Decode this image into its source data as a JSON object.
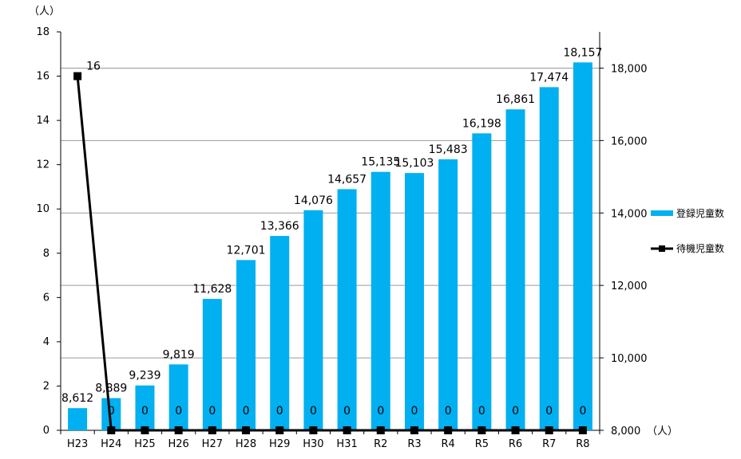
{
  "chart_data": {
    "type": "bar",
    "categories": [
      "H23",
      "H24",
      "H25",
      "H26",
      "H27",
      "H28",
      "H29",
      "H30",
      "H31",
      "R2",
      "R3",
      "R4",
      "R5",
      "R6",
      "R7",
      "R8"
    ],
    "series": [
      {
        "name": "登録児童数",
        "chart_type": "bar",
        "axis": "right",
        "color": "#00b0f0",
        "values": [
          8612,
          8889,
          9239,
          9819,
          11628,
          12701,
          13366,
          14076,
          14657,
          15135,
          15103,
          15483,
          16198,
          16861,
          17474,
          18157
        ],
        "labels": [
          "8,612",
          "8,889",
          "9,239",
          "9,819",
          "11,628",
          "12,701",
          "13,366",
          "14,076",
          "14,657",
          "15,135",
          "15,103",
          "15,483",
          "16,198",
          "16,861",
          "17,474",
          "18,157"
        ]
      },
      {
        "name": "待機児童数",
        "chart_type": "line",
        "axis": "left",
        "color": "#000000",
        "marker": "square",
        "values": [
          16,
          0,
          0,
          0,
          0,
          0,
          0,
          0,
          0,
          0,
          0,
          0,
          0,
          0,
          0,
          0
        ],
        "labels": [
          "16",
          "0",
          "0",
          "0",
          "0",
          "0",
          "0",
          "0",
          "0",
          "0",
          "0",
          "0",
          "0",
          "0",
          "0",
          "0"
        ]
      }
    ],
    "left_axis": {
      "unit": "（人）",
      "range": [
        0,
        18
      ],
      "ticks": [
        0,
        2,
        4,
        6,
        8,
        10,
        12,
        14,
        16,
        18
      ],
      "tick_labels": [
        "0",
        "2",
        "4",
        "6",
        "8",
        "10",
        "12",
        "14",
        "16",
        "18"
      ]
    },
    "right_axis": {
      "unit": "（人）",
      "range": [
        8000,
        19000
      ],
      "ticks": [
        8000,
        10000,
        12000,
        14000,
        16000,
        18000
      ],
      "tick_labels": [
        "8,000",
        "10,000",
        "12,000",
        "14,000",
        "16,000",
        "18,000"
      ]
    },
    "grid": true,
    "legend_position": "right"
  }
}
